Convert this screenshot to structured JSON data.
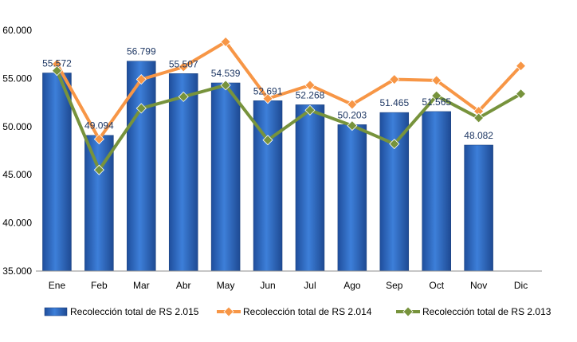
{
  "chart_data": {
    "type": "bar",
    "categories": [
      "Ene",
      "Feb",
      "Mar",
      "Abr",
      "May",
      "Jun",
      "Jul",
      "Ago",
      "Sep",
      "Oct",
      "Nov",
      "Dic"
    ],
    "ylim": [
      35000,
      60000
    ],
    "yticks": [
      35000,
      40000,
      45000,
      50000,
      55000,
      60000
    ],
    "ytick_labels": [
      "35.000",
      "40.000",
      "45.000",
      "50.000",
      "55.000",
      "60.000"
    ],
    "grid": false,
    "legend": "bottom",
    "series": [
      {
        "name": "Recolección total de RS 2.015",
        "type": "bar",
        "color": "#2E6AC0",
        "values": [
          55572,
          49094,
          56799,
          55507,
          54539,
          52691,
          52268,
          50203,
          51465,
          51565,
          48082,
          null
        ],
        "data_labels": [
          "55.572",
          "49.094",
          "56.799",
          "55.507",
          "54.539",
          "52.691",
          "52.268",
          "50.203",
          "51.465",
          "51.565",
          "48.082",
          ""
        ]
      },
      {
        "name": "Recolección total de RS 2.014",
        "type": "line",
        "color": "#F79646",
        "values": [
          56500,
          48700,
          54900,
          56200,
          58800,
          52900,
          54300,
          52300,
          54900,
          54800,
          51600,
          56300
        ]
      },
      {
        "name": "Recolección total de RS 2.013",
        "type": "line",
        "color": "#77933C",
        "values": [
          55800,
          45500,
          51900,
          53100,
          54300,
          48600,
          51700,
          50100,
          48200,
          53200,
          50900,
          53400
        ]
      }
    ]
  }
}
